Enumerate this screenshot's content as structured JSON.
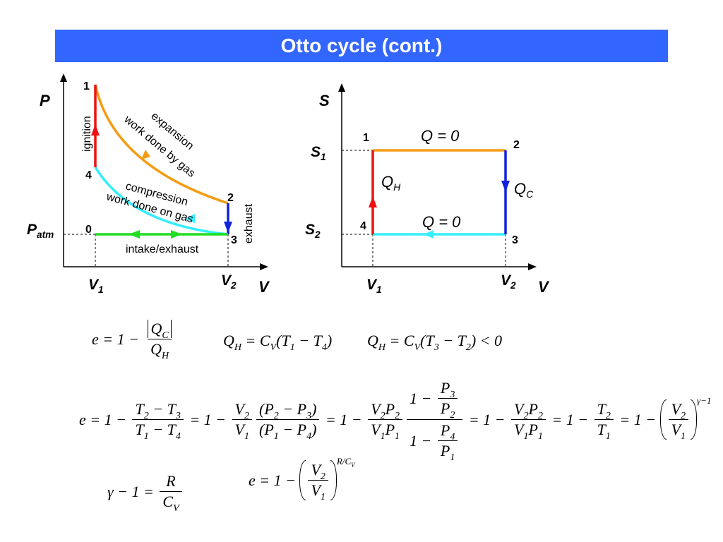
{
  "title": "Otto cycle (cont.)",
  "pv_diagram": {
    "y_label": "P",
    "x_label": "V",
    "v1": {
      "b": "V",
      "s": "1"
    },
    "v2": {
      "b": "V",
      "s": "2"
    },
    "p_atm": {
      "b": "P",
      "s": "atm"
    },
    "points": [
      "1",
      "2",
      "3",
      "4",
      "0"
    ],
    "labels": {
      "ignition": "ignition",
      "expansion": "expansion",
      "work_by": "work done by gas",
      "compression": "compression",
      "work_on": "work done on gas",
      "exhaust": "exhaust",
      "intake": "intake/exhaust"
    }
  },
  "sv_diagram": {
    "y_label": "S",
    "x_label": "V",
    "s1": {
      "b": "S",
      "s": "1"
    },
    "s2": {
      "b": "S",
      "s": "2"
    },
    "v1": {
      "b": "V",
      "s": "1"
    },
    "v2": {
      "b": "V",
      "s": "2"
    },
    "points": [
      "1",
      "2",
      "3",
      "4"
    ],
    "q_top": "Q = 0",
    "q_bottom": "Q = 0",
    "q_h": {
      "b": "Q",
      "s": "H"
    },
    "q_c": {
      "b": "Q",
      "s": "C"
    }
  },
  "equations": [
    [
      "e = 1 − ",
      {
        "num": [
          {
            "abs": [
              {
                "b": "Q",
                "s": "C"
              }
            ]
          }
        ],
        "den": [
          {
            "b": "Q",
            "s": "H"
          }
        ]
      }
    ],
    [
      {
        "b": "Q",
        "s": "H"
      },
      " = ",
      {
        "b": "C",
        "s": "V"
      },
      "(",
      {
        "b": "T",
        "s": "1"
      },
      " − ",
      {
        "b": "T",
        "s": "4"
      },
      ")"
    ],
    [
      {
        "b": "Q",
        "s": "H"
      },
      " = ",
      {
        "b": "C",
        "s": "V"
      },
      "(",
      {
        "b": "T",
        "s": "3"
      },
      " − ",
      {
        "b": "T",
        "s": "2"
      },
      ") < 0"
    ],
    [
      "e = 1 − ",
      {
        "num": [
          {
            "b": "T",
            "s": "2"
          },
          " − ",
          {
            "b": "T",
            "s": "3"
          }
        ],
        "den": [
          {
            "b": "T",
            "s": "1"
          },
          " − ",
          {
            "b": "T",
            "s": "4"
          }
        ]
      },
      " = 1 − ",
      {
        "num": [
          {
            "b": "V",
            "s": "2"
          }
        ],
        "den": [
          {
            "b": "V",
            "s": "1"
          }
        ]
      },
      {
        "num": [
          "(",
          {
            "b": "P",
            "s": "2"
          },
          " − ",
          {
            "b": "P",
            "s": "3"
          },
          ")"
        ],
        "den": [
          "(",
          {
            "b": "P",
            "s": "1"
          },
          " − ",
          {
            "b": "P",
            "s": "4"
          },
          ")"
        ]
      },
      " = 1 − ",
      {
        "num": [
          {
            "b": "V",
            "s": "2"
          },
          {
            "b": "P",
            "s": "2"
          }
        ],
        "den": [
          {
            "b": "V",
            "s": "1"
          },
          {
            "b": "P",
            "s": "1"
          }
        ]
      },
      {
        "num": [
          "1 − ",
          {
            "num": [
              {
                "b": "P",
                "s": "3"
              }
            ],
            "den": [
              {
                "b": "P",
                "s": "2"
              }
            ]
          }
        ],
        "den": [
          "1 − ",
          {
            "num": [
              {
                "b": "P",
                "s": "4"
              }
            ],
            "den": [
              {
                "b": "P",
                "s": "1"
              }
            ]
          }
        ]
      },
      " = 1 − ",
      {
        "num": [
          {
            "b": "V",
            "s": "2"
          },
          {
            "b": "P",
            "s": "2"
          }
        ],
        "den": [
          {
            "b": "V",
            "s": "1"
          },
          {
            "b": "P",
            "s": "1"
          }
        ]
      },
      " = 1 − ",
      {
        "num": [
          {
            "b": "T",
            "s": "2"
          }
        ],
        "den": [
          {
            "b": "T",
            "s": "1"
          }
        ]
      },
      " = 1 − ",
      {
        "paren": [
          {
            "num": [
              {
                "b": "V",
                "s": "2"
              }
            ],
            "den": [
              {
                "b": "V",
                "s": "1"
              }
            ]
          }
        ],
        "sup": [
          "γ−1"
        ]
      }
    ],
    [
      "γ − 1 = ",
      {
        "num": [
          "R"
        ],
        "den": [
          {
            "b": "C",
            "s": "V"
          }
        ]
      }
    ],
    [
      "e = 1 − ",
      {
        "paren": [
          {
            "num": [
              {
                "b": "V",
                "s": "2"
              }
            ],
            "den": [
              {
                "b": "V",
                "s": "1"
              }
            ]
          }
        ],
        "sup": [
          "R/",
          {
            "b": "C",
            "s": "V"
          }
        ]
      }
    ]
  ]
}
